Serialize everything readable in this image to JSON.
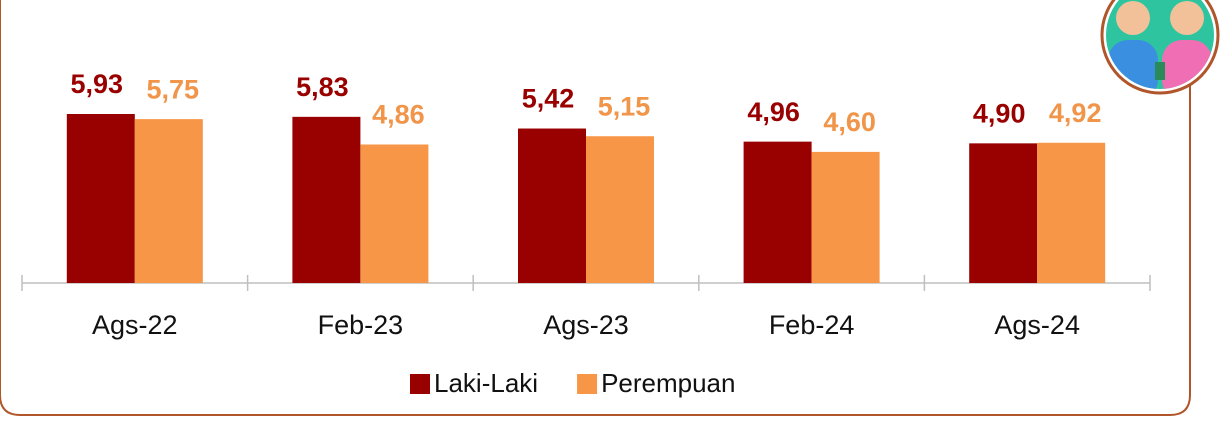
{
  "chart_data": {
    "type": "bar",
    "categories": [
      "Ags-22",
      "Feb-23",
      "Ags-23",
      "Feb-24",
      "Ags-24"
    ],
    "series": [
      {
        "name": "Laki-Laki",
        "color": "#990000",
        "values": [
          5.93,
          5.83,
          5.42,
          4.96,
          4.9
        ],
        "value_labels": [
          "5,93",
          "5,83",
          "5,42",
          "4,96",
          "4,90"
        ]
      },
      {
        "name": "Perempuan",
        "color": "#f79646",
        "values": [
          5.75,
          4.86,
          5.15,
          4.6,
          4.92
        ],
        "value_labels": [
          "5,75",
          "4,86",
          "5,15",
          "4,60",
          "4,92"
        ]
      }
    ],
    "ylim": [
      0,
      6
    ]
  }
}
